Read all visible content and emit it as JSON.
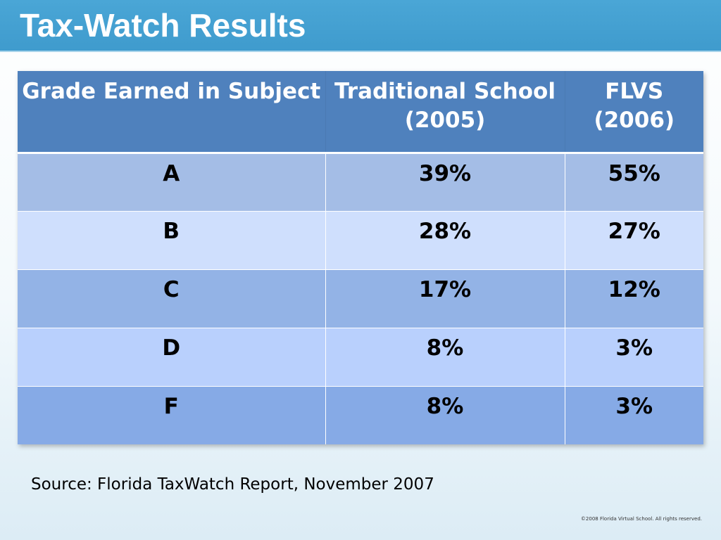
{
  "slide": {
    "title": "Tax-Watch Results",
    "source": "Source: Florida TaxWatch Report, November 2007",
    "copyright": "©2008 Florida Virtual School. All rights reserved."
  },
  "table": {
    "headers": [
      "Grade Earned in Subject",
      "Traditional School (2005)",
      "FLVS (2006)"
    ],
    "rows": [
      [
        "A",
        "39%",
        "55%"
      ],
      [
        "B",
        "28%",
        "27%"
      ],
      [
        "C",
        "17%",
        "12%"
      ],
      [
        "D",
        "8%",
        "3%"
      ],
      [
        "F",
        "8%",
        "3%"
      ]
    ]
  },
  "colors": {
    "title_bar": "#3f9bcd",
    "header_fill": "#4f81bd"
  }
}
